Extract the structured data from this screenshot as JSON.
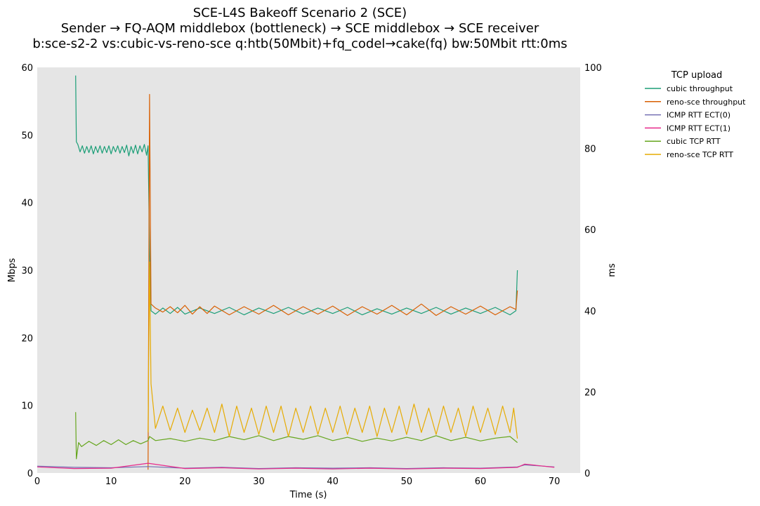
{
  "chart_data": {
    "type": "line",
    "title_lines": [
      "SCE-L4S Bakeoff Scenario 2 (SCE)",
      "Sender → FQ-AQM middlebox (bottleneck) → SCE middlebox → SCE receiver",
      "b:sce-s2-2 vs:cubic-vs-reno-sce q:htb(50Mbit)+fq_codel→cake(fq) bw:50Mbit rtt:0ms"
    ],
    "xlabel": "Time (s)",
    "ylabel_left": "Mbps",
    "ylabel_right": "ms",
    "xlim": [
      0,
      73.5
    ],
    "ylim_left": [
      0,
      60
    ],
    "ylim_right": [
      0,
      100
    ],
    "x_ticks": [
      0,
      10,
      20,
      30,
      40,
      50,
      60,
      70
    ],
    "y_ticks_left": [
      0,
      10,
      20,
      30,
      40,
      50,
      60
    ],
    "y_ticks_right": [
      0,
      20,
      40,
      60,
      80,
      100
    ],
    "plot_background": "#e5e5e5",
    "grid": false,
    "legend_title": "TCP upload",
    "legend_position": "outside-right",
    "series": [
      {
        "name": "cubic throughput",
        "axis": "left",
        "color": "#1b9e77",
        "points": [
          [
            5.2,
            58.8
          ],
          [
            5.3,
            49.0
          ],
          [
            5.5,
            48.6
          ],
          [
            5.8,
            47.5
          ],
          [
            6.1,
            48.4
          ],
          [
            6.4,
            47.3
          ],
          [
            6.7,
            48.3
          ],
          [
            7.0,
            47.4
          ],
          [
            7.3,
            48.4
          ],
          [
            7.6,
            47.2
          ],
          [
            7.9,
            48.3
          ],
          [
            8.2,
            47.4
          ],
          [
            8.5,
            48.4
          ],
          [
            8.8,
            47.3
          ],
          [
            9.1,
            48.3
          ],
          [
            9.4,
            47.4
          ],
          [
            9.7,
            48.4
          ],
          [
            10.0,
            47.2
          ],
          [
            10.3,
            48.3
          ],
          [
            10.6,
            47.5
          ],
          [
            10.9,
            48.4
          ],
          [
            11.2,
            47.3
          ],
          [
            11.5,
            48.3
          ],
          [
            11.8,
            47.4
          ],
          [
            12.1,
            48.5
          ],
          [
            12.4,
            46.9
          ],
          [
            12.7,
            48.3
          ],
          [
            13.0,
            47.3
          ],
          [
            13.3,
            48.5
          ],
          [
            13.6,
            47.2
          ],
          [
            13.9,
            48.4
          ],
          [
            14.2,
            47.5
          ],
          [
            14.5,
            48.6
          ],
          [
            14.8,
            47.0
          ],
          [
            15.0,
            48.4
          ],
          [
            15.2,
            33.0
          ],
          [
            15.4,
            24.0
          ],
          [
            16.0,
            23.5
          ],
          [
            17.0,
            24.4
          ],
          [
            18.0,
            23.6
          ],
          [
            19.0,
            24.5
          ],
          [
            20.0,
            23.5
          ],
          [
            22.0,
            24.4
          ],
          [
            24.0,
            23.6
          ],
          [
            26.0,
            24.5
          ],
          [
            28.0,
            23.4
          ],
          [
            30.0,
            24.4
          ],
          [
            32.0,
            23.6
          ],
          [
            34.0,
            24.5
          ],
          [
            36.0,
            23.5
          ],
          [
            38.0,
            24.4
          ],
          [
            40.0,
            23.6
          ],
          [
            42.0,
            24.5
          ],
          [
            44.0,
            23.4
          ],
          [
            46.0,
            24.3
          ],
          [
            48.0,
            23.5
          ],
          [
            50.0,
            24.4
          ],
          [
            52.0,
            23.6
          ],
          [
            54.0,
            24.5
          ],
          [
            56.0,
            23.5
          ],
          [
            58.0,
            24.4
          ],
          [
            60.0,
            23.6
          ],
          [
            62.0,
            24.5
          ],
          [
            64.0,
            23.4
          ],
          [
            64.8,
            24.0
          ],
          [
            65.0,
            30.0
          ]
        ]
      },
      {
        "name": "reno-sce throughput",
        "axis": "left",
        "color": "#d95f02",
        "points": [
          [
            15.0,
            0.5
          ],
          [
            15.2,
            56.0
          ],
          [
            15.4,
            25.0
          ],
          [
            16.0,
            24.4
          ],
          [
            17.0,
            23.8
          ],
          [
            18.0,
            24.6
          ],
          [
            19.0,
            23.7
          ],
          [
            20.0,
            24.8
          ],
          [
            21.0,
            23.5
          ],
          [
            22.0,
            24.6
          ],
          [
            23.0,
            23.6
          ],
          [
            24.0,
            24.7
          ],
          [
            26.0,
            23.4
          ],
          [
            28.0,
            24.6
          ],
          [
            30.0,
            23.5
          ],
          [
            32.0,
            24.8
          ],
          [
            34.0,
            23.4
          ],
          [
            36.0,
            24.6
          ],
          [
            38.0,
            23.5
          ],
          [
            40.0,
            24.7
          ],
          [
            42.0,
            23.3
          ],
          [
            44.0,
            24.6
          ],
          [
            46.0,
            23.5
          ],
          [
            48.0,
            24.8
          ],
          [
            50.0,
            23.4
          ],
          [
            52.0,
            25.0
          ],
          [
            54.0,
            23.3
          ],
          [
            56.0,
            24.6
          ],
          [
            58.0,
            23.5
          ],
          [
            60.0,
            24.7
          ],
          [
            62.0,
            23.4
          ],
          [
            64.0,
            24.6
          ],
          [
            64.8,
            24.2
          ],
          [
            65.0,
            27.0
          ]
        ]
      },
      {
        "name": "ICMP RTT ECT(0)",
        "axis": "right",
        "color": "#7570b3",
        "points": [
          [
            0,
            1.7
          ],
          [
            5,
            1.4
          ],
          [
            10,
            1.3
          ],
          [
            15,
            1.6
          ],
          [
            20,
            1.2
          ],
          [
            25,
            1.4
          ],
          [
            30,
            1.1
          ],
          [
            35,
            1.3
          ],
          [
            40,
            1.2
          ],
          [
            45,
            1.3
          ],
          [
            50,
            1.1
          ],
          [
            55,
            1.3
          ],
          [
            60,
            1.2
          ],
          [
            65,
            1.5
          ],
          [
            66,
            2.0
          ],
          [
            70,
            1.5
          ]
        ]
      },
      {
        "name": "ICMP RTT ECT(1)",
        "axis": "right",
        "color": "#e7298a",
        "points": [
          [
            0,
            1.5
          ],
          [
            5,
            1.1
          ],
          [
            10,
            1.2
          ],
          [
            15,
            2.4
          ],
          [
            20,
            1.1
          ],
          [
            25,
            1.3
          ],
          [
            30,
            1.0
          ],
          [
            35,
            1.2
          ],
          [
            40,
            1.0
          ],
          [
            45,
            1.2
          ],
          [
            50,
            1.0
          ],
          [
            55,
            1.2
          ],
          [
            60,
            1.1
          ],
          [
            65,
            1.4
          ],
          [
            66,
            2.2
          ],
          [
            70,
            1.4
          ]
        ]
      },
      {
        "name": "cubic TCP RTT",
        "axis": "right",
        "color": "#66a61e",
        "points": [
          [
            5.2,
            15.0
          ],
          [
            5.3,
            3.5
          ],
          [
            5.6,
            7.5
          ],
          [
            6.0,
            6.5
          ],
          [
            7.0,
            7.8
          ],
          [
            8.0,
            6.8
          ],
          [
            9.0,
            8.0
          ],
          [
            10.0,
            7.0
          ],
          [
            11.0,
            8.2
          ],
          [
            12.0,
            7.0
          ],
          [
            13.0,
            8.0
          ],
          [
            14.0,
            7.2
          ],
          [
            15.0,
            8.0
          ],
          [
            15.2,
            9.0
          ],
          [
            16.0,
            8.0
          ],
          [
            18.0,
            8.5
          ],
          [
            20.0,
            7.8
          ],
          [
            22.0,
            8.6
          ],
          [
            24.0,
            8.0
          ],
          [
            26.0,
            9.0
          ],
          [
            28.0,
            8.2
          ],
          [
            30.0,
            9.2
          ],
          [
            32.0,
            8.0
          ],
          [
            34.0,
            9.0
          ],
          [
            36.0,
            8.3
          ],
          [
            38.0,
            9.2
          ],
          [
            40.0,
            8.0
          ],
          [
            42.0,
            8.8
          ],
          [
            44.0,
            7.8
          ],
          [
            46.0,
            8.6
          ],
          [
            48.0,
            7.9
          ],
          [
            50.0,
            8.8
          ],
          [
            52.0,
            8.0
          ],
          [
            54.0,
            9.2
          ],
          [
            56.0,
            8.0
          ],
          [
            58.0,
            8.8
          ],
          [
            60.0,
            7.9
          ],
          [
            62.0,
            8.6
          ],
          [
            64.0,
            9.0
          ],
          [
            65.0,
            7.5
          ]
        ]
      },
      {
        "name": "reno-sce TCP RTT",
        "axis": "right",
        "color": "#e6ab02",
        "points": [
          [
            15.0,
            10.0
          ],
          [
            15.2,
            52.0
          ],
          [
            15.4,
            22.0
          ],
          [
            16.0,
            11.0
          ],
          [
            17.0,
            16.5
          ],
          [
            18.0,
            10.5
          ],
          [
            19.0,
            16.0
          ],
          [
            20.0,
            10.0
          ],
          [
            21.0,
            15.5
          ],
          [
            22.0,
            10.5
          ],
          [
            23.0,
            16.0
          ],
          [
            24.0,
            10.0
          ],
          [
            25.0,
            17.0
          ],
          [
            26.0,
            9.0
          ],
          [
            27.0,
            16.5
          ],
          [
            28.0,
            10.0
          ],
          [
            29.0,
            16.0
          ],
          [
            30.0,
            9.5
          ],
          [
            31.0,
            16.5
          ],
          [
            32.0,
            10.0
          ],
          [
            33.0,
            16.5
          ],
          [
            34.0,
            9.0
          ],
          [
            35.0,
            16.0
          ],
          [
            36.0,
            10.0
          ],
          [
            37.0,
            16.5
          ],
          [
            38.0,
            9.5
          ],
          [
            39.0,
            16.0
          ],
          [
            40.0,
            10.0
          ],
          [
            41.0,
            16.5
          ],
          [
            42.0,
            9.5
          ],
          [
            43.0,
            16.0
          ],
          [
            44.0,
            10.0
          ],
          [
            45.0,
            16.5
          ],
          [
            46.0,
            9.0
          ],
          [
            47.0,
            16.0
          ],
          [
            48.0,
            10.0
          ],
          [
            49.0,
            16.5
          ],
          [
            50.0,
            9.5
          ],
          [
            51.0,
            17.0
          ],
          [
            52.0,
            10.0
          ],
          [
            53.0,
            16.0
          ],
          [
            54.0,
            9.5
          ],
          [
            55.0,
            16.5
          ],
          [
            56.0,
            10.0
          ],
          [
            57.0,
            16.0
          ],
          [
            58.0,
            9.0
          ],
          [
            59.0,
            16.5
          ],
          [
            60.0,
            10.0
          ],
          [
            61.0,
            16.0
          ],
          [
            62.0,
            9.5
          ],
          [
            63.0,
            16.5
          ],
          [
            64.0,
            10.0
          ],
          [
            64.5,
            16.0
          ],
          [
            65.0,
            8.5
          ]
        ]
      }
    ]
  }
}
